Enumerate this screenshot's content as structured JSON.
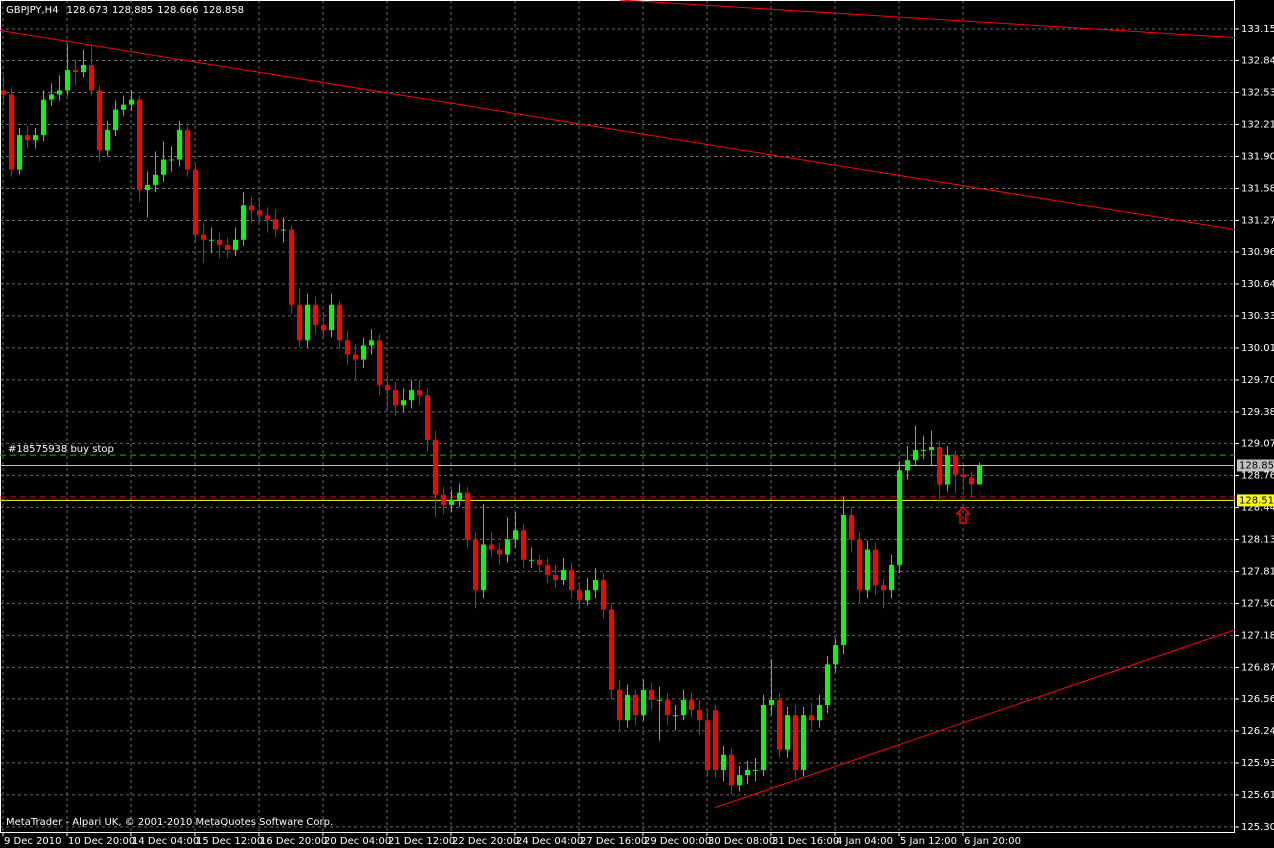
{
  "chart_data": {
    "type": "candlestick",
    "symbol": "GBPJPY,H4",
    "footer": "MetaTrader - Alpari UK, © 2001-2010 MetaQuotes Software Corp.",
    "categories": [
      "9 Dec 2010",
      null,
      null,
      null,
      null,
      null,
      null,
      null,
      "10 Dec 20:00",
      null,
      null,
      null,
      null,
      null,
      null,
      null,
      "14 Dec 04:00",
      null,
      null,
      null,
      null,
      null,
      null,
      null,
      "15 Dec 12:00",
      null,
      null,
      null,
      null,
      null,
      null,
      null,
      "16 Dec 20:00",
      null,
      null,
      null,
      null,
      null,
      null,
      null,
      "20 Dec 04:00",
      null,
      null,
      null,
      null,
      null,
      null,
      null,
      "21 Dec 12:00",
      null,
      null,
      null,
      null,
      null,
      null,
      null,
      "22 Dec 20:00",
      null,
      null,
      null,
      null,
      null,
      null,
      null,
      "24 Dec 04:00",
      null,
      null,
      null,
      null,
      null,
      null,
      null,
      "27 Dec 16:00",
      null,
      null,
      null,
      null,
      null,
      null,
      null,
      "29 Dec 00:00",
      null,
      null,
      null,
      null,
      null,
      null,
      null,
      "30 Dec 08:00",
      null,
      null,
      null,
      null,
      null,
      null,
      null,
      "31 Dec 16:00",
      null,
      null,
      null,
      null,
      null,
      null,
      null,
      "4 Jan 04:00",
      null,
      null,
      null,
      null,
      null,
      null,
      null,
      "5 Jan 12:00",
      null,
      null,
      null,
      null,
      null,
      null,
      null,
      "6 Jan 20:00",
      null,
      null
    ],
    "open": [
      132.55,
      132.51,
      131.77,
      132.11,
      132.06,
      132.11,
      132.46,
      132.51,
      132.55,
      132.75,
      132.73,
      132.8,
      132.55,
      131.96,
      132.16,
      132.36,
      132.41,
      132.46,
      131.57,
      131.62,
      131.72,
      131.87,
      131.87,
      132.16,
      131.77,
      131.13,
      131.08,
      131.08,
      131.03,
      130.98,
      131.08,
      131.42,
      131.37,
      131.32,
      131.28,
      131.18,
      131.18,
      130.44,
      130.09,
      130.44,
      130.24,
      130.19,
      130.44,
      130.09,
      129.95,
      129.9,
      130.04,
      130.09,
      129.65,
      129.6,
      129.45,
      129.5,
      129.6,
      129.55,
      129.11,
      128.57,
      128.47,
      128.52,
      128.59,
      128.13,
      127.63,
      128.08,
      128.03,
      127.98,
      128.13,
      128.22,
      127.93,
      127.93,
      127.88,
      127.78,
      127.73,
      127.83,
      127.63,
      127.53,
      127.63,
      127.73,
      127.44,
      126.65,
      126.35,
      126.6,
      126.4,
      126.65,
      126.55,
      126.55,
      126.4,
      126.4,
      126.55,
      126.45,
      126.35,
      126.45,
      125.86,
      126.01,
      125.71,
      125.81,
      125.86,
      125.86,
      126.5,
      126.55,
      126.06,
      126.4,
      125.86,
      126.4,
      126.35,
      126.5,
      126.9,
      127.09,
      128.37,
      128.13,
      127.63,
      128.03,
      127.68,
      127.63,
      127.88,
      128.81,
      128.91,
      129.01,
      129.01,
      129.04,
      128.67,
      128.96,
      128.77,
      128.74,
      128.673
    ],
    "high": [
      132.7,
      132.58,
      132.18,
      132.2,
      132.18,
      132.55,
      132.62,
      132.7,
      133.0,
      132.85,
      132.95,
      133.0,
      132.6,
      132.25,
      132.45,
      132.5,
      132.55,
      132.5,
      131.75,
      131.95,
      132.05,
      132.0,
      132.25,
      132.2,
      131.82,
      131.25,
      131.2,
      131.15,
      131.1,
      131.2,
      131.55,
      131.5,
      131.5,
      131.4,
      131.38,
      131.3,
      131.22,
      130.6,
      130.55,
      130.52,
      130.35,
      130.55,
      130.48,
      130.18,
      130.05,
      130.12,
      130.2,
      130.15,
      129.75,
      129.68,
      129.62,
      129.7,
      129.7,
      129.62,
      129.2,
      128.65,
      128.62,
      128.68,
      128.65,
      128.2,
      128.48,
      128.2,
      128.1,
      128.35,
      128.4,
      128.28,
      128.05,
      127.98,
      127.95,
      127.88,
      127.95,
      127.9,
      127.7,
      127.75,
      127.85,
      127.8,
      127.5,
      126.75,
      126.7,
      126.65,
      126.75,
      126.72,
      126.68,
      126.62,
      126.5,
      126.65,
      126.62,
      126.55,
      126.45,
      126.5,
      126.1,
      126.08,
      125.9,
      125.95,
      125.98,
      126.6,
      126.95,
      126.62,
      126.48,
      126.5,
      126.48,
      126.52,
      126.6,
      126.98,
      127.15,
      128.55,
      128.45,
      128.2,
      128.12,
      128.1,
      127.75,
      127.98,
      128.9,
      129.05,
      129.25,
      129.15,
      129.2,
      129.1,
      129.05,
      129.0,
      128.85,
      128.8,
      128.885
    ],
    "low": [
      132.4,
      131.7,
      131.72,
      131.98,
      131.98,
      132.05,
      132.4,
      132.45,
      132.5,
      132.6,
      132.68,
      132.5,
      131.85,
      131.9,
      132.1,
      132.3,
      132.35,
      131.45,
      131.3,
      131.55,
      131.65,
      131.75,
      131.8,
      131.7,
      131.05,
      130.85,
      130.95,
      130.9,
      130.9,
      130.92,
      131.02,
      131.25,
      131.25,
      131.15,
      131.1,
      131.05,
      130.35,
      130.02,
      130.02,
      130.15,
      130.1,
      130.12,
      130.0,
      129.85,
      129.7,
      129.82,
      129.95,
      129.55,
      129.4,
      129.35,
      129.38,
      129.42,
      129.45,
      129.0,
      128.35,
      128.38,
      128.4,
      128.45,
      128.05,
      127.45,
      127.55,
      127.95,
      127.88,
      127.9,
      128.05,
      127.85,
      127.85,
      127.8,
      127.7,
      127.65,
      127.68,
      127.55,
      127.45,
      127.48,
      127.55,
      127.35,
      126.55,
      126.25,
      126.28,
      126.3,
      126.35,
      126.45,
      126.15,
      126.3,
      126.25,
      126.35,
      126.38,
      126.2,
      125.8,
      125.78,
      125.75,
      125.62,
      125.65,
      125.72,
      125.75,
      125.8,
      126.4,
      125.98,
      125.98,
      125.78,
      125.8,
      126.25,
      126.28,
      126.42,
      126.82,
      127.0,
      128.0,
      127.5,
      127.55,
      127.58,
      127.45,
      127.55,
      127.8,
      128.72,
      128.85,
      128.92,
      128.85,
      128.5,
      128.6,
      128.58,
      128.6,
      128.55,
      128.666
    ],
    "close": [
      132.51,
      131.77,
      132.11,
      132.06,
      132.11,
      132.46,
      132.51,
      132.55,
      132.75,
      132.73,
      132.8,
      132.55,
      131.96,
      132.16,
      132.36,
      132.41,
      132.46,
      131.57,
      131.62,
      131.72,
      131.87,
      131.87,
      132.16,
      131.77,
      131.13,
      131.08,
      131.08,
      131.03,
      130.98,
      131.08,
      131.42,
      131.37,
      131.32,
      131.28,
      131.18,
      131.18,
      130.44,
      130.09,
      130.44,
      130.24,
      130.19,
      130.44,
      130.09,
      129.95,
      129.9,
      130.04,
      130.09,
      129.65,
      129.6,
      129.45,
      129.5,
      129.6,
      129.55,
      129.11,
      128.57,
      128.47,
      128.52,
      128.59,
      128.13,
      127.63,
      128.08,
      128.03,
      127.98,
      128.13,
      128.22,
      127.93,
      127.93,
      127.88,
      127.78,
      127.73,
      127.83,
      127.63,
      127.53,
      127.63,
      127.73,
      127.44,
      126.65,
      126.35,
      126.6,
      126.4,
      126.65,
      126.55,
      126.55,
      126.4,
      126.4,
      126.55,
      126.45,
      126.35,
      125.86,
      125.86,
      126.01,
      125.71,
      125.81,
      125.86,
      125.86,
      126.5,
      126.55,
      126.06,
      126.4,
      125.86,
      126.4,
      126.35,
      126.5,
      126.9,
      127.09,
      128.37,
      128.13,
      127.63,
      128.03,
      127.68,
      127.63,
      127.88,
      128.81,
      128.91,
      129.01,
      129.01,
      129.04,
      128.67,
      128.96,
      128.77,
      128.74,
      128.673,
      128.858
    ],
    "up_color": "#00ff00",
    "down_color": "#ff0000",
    "xlim": [
      -0.375,
      154
    ],
    "ylim": [
      125.25,
      133.44
    ],
    "yticks": [
      133.155,
      132.845,
      {
        "value": 132.53,
        "label": "132.530"
      },
      132.215,
      {
        "value": 131.9,
        "label": "131.900"
      },
      131.585,
      {
        "value": 131.27,
        "label": "131.270"
      },
      {
        "value": 130.96,
        "label": "130.960"
      },
      130.645,
      {
        "value": 130.33,
        "label": "130.330"
      },
      130.015,
      {
        "value": 129.7,
        "label": "129.700"
      },
      129.385,
      129.075,
      {
        "value": 128.76,
        "label": "128.760"
      },
      128.445,
      {
        "value": 128.13,
        "label": "128.130"
      },
      127.815,
      {
        "value": 127.5,
        "label": "127.500"
      },
      127.185,
      {
        "value": 126.87,
        "label": "126.870"
      },
      {
        "value": 126.56,
        "label": "126.560"
      },
      126.245,
      {
        "value": 125.93,
        "label": "125.930"
      },
      125.615,
      {
        "value": 125.3,
        "label": "125.300"
      }
    ],
    "grid": true,
    "hlines": [
      {
        "label": "#18575938 buy stop",
        "value": 128.96,
        "color": "#00c000",
        "dashed": true
      },
      {
        "value": 128.548,
        "color": "#ff0000",
        "dashed": true
      },
      {
        "value": 128.514,
        "color": "#ffff00",
        "dashed": false,
        "tag": true
      },
      {
        "value": 128.858,
        "color": "#c0c0c0",
        "dashed": false,
        "tag": true
      }
    ],
    "trendlines": [
      {
        "x": [
          -0.375,
          154
        ],
        "y": [
          133.14,
          131.18
        ],
        "color": "#ff0000"
      },
      {
        "x": [
          77.1,
          154
        ],
        "y": [
          133.44,
          133.07
        ],
        "color": "#ff0000"
      },
      {
        "x": [
          89,
          154
        ],
        "y": [
          125.49,
          127.24
        ],
        "color": "#ff0000"
      }
    ],
    "arrows": [
      {
        "x": 120,
        "y": 128.37,
        "color": "#ff0000"
      }
    ]
  }
}
